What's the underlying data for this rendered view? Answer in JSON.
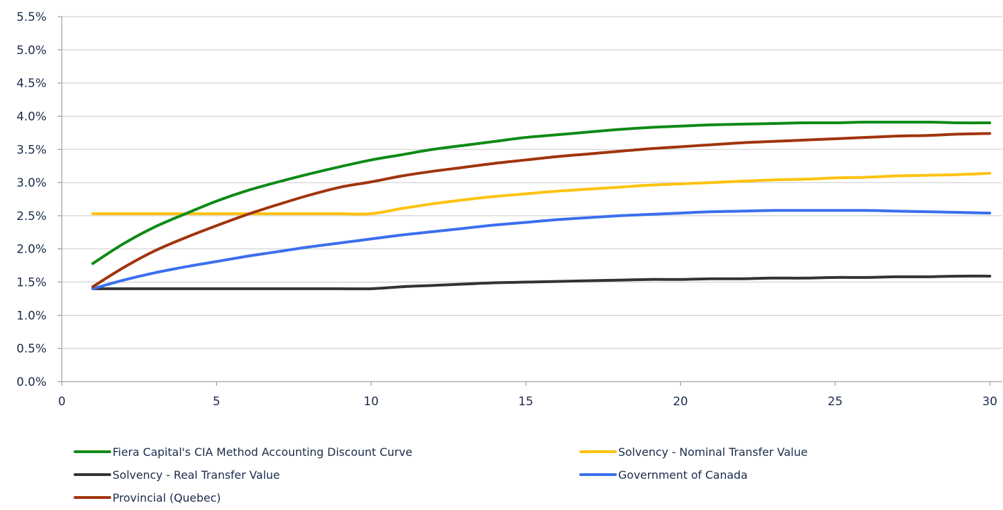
{
  "chart_data": {
    "type": "line",
    "title": "",
    "xlabel": "",
    "ylabel": "",
    "xlim": [
      0,
      30
    ],
    "ylim": [
      0.0,
      5.5
    ],
    "x_ticks": [
      0,
      5,
      10,
      15,
      20,
      25,
      30
    ],
    "x_tick_labels": [
      "0",
      "5",
      "10",
      "15",
      "20",
      "25",
      "30"
    ],
    "y_ticks": [
      0.0,
      0.5,
      1.0,
      1.5,
      2.0,
      2.5,
      3.0,
      3.5,
      4.0,
      4.5,
      5.0,
      5.5
    ],
    "y_tick_labels": [
      "0.0%",
      "0.5%",
      "1.0%",
      "1.5%",
      "2.0%",
      "2.5%",
      "3.0%",
      "3.5%",
      "4.0%",
      "4.5%",
      "5.0%",
      "5.5%"
    ],
    "grid": "horizontal",
    "legend_position": "bottom",
    "series": [
      {
        "name": "Fiera Capital's CIA Method Accounting Discount Curve",
        "color": "#0e8a16",
        "x": [
          1,
          2,
          3,
          4,
          5,
          6,
          7,
          8,
          9,
          10,
          11,
          12,
          13,
          14,
          15,
          16,
          17,
          18,
          19,
          20,
          21,
          22,
          23,
          24,
          25,
          26,
          27,
          28,
          29,
          30
        ],
        "values": [
          1.78,
          2.08,
          2.33,
          2.53,
          2.72,
          2.88,
          3.01,
          3.13,
          3.24,
          3.34,
          3.42,
          3.5,
          3.56,
          3.62,
          3.68,
          3.72,
          3.76,
          3.8,
          3.83,
          3.85,
          3.87,
          3.88,
          3.89,
          3.9,
          3.9,
          3.91,
          3.91,
          3.91,
          3.9,
          3.9
        ]
      },
      {
        "name": "Solvency - Nominal Transfer Value",
        "color": "#ffc20e",
        "x": [
          1,
          2,
          3,
          4,
          5,
          6,
          7,
          8,
          9,
          10,
          11,
          12,
          13,
          14,
          15,
          16,
          17,
          18,
          19,
          20,
          21,
          22,
          23,
          24,
          25,
          26,
          27,
          28,
          29,
          30
        ],
        "values": [
          2.53,
          2.53,
          2.53,
          2.53,
          2.53,
          2.53,
          2.53,
          2.53,
          2.53,
          2.53,
          2.61,
          2.68,
          2.74,
          2.79,
          2.83,
          2.87,
          2.9,
          2.93,
          2.96,
          2.98,
          3.0,
          3.02,
          3.04,
          3.05,
          3.07,
          3.08,
          3.1,
          3.11,
          3.12,
          3.14
        ]
      },
      {
        "name": "Solvency - Real Transfer Value",
        "color": "#333333",
        "x": [
          1,
          2,
          3,
          4,
          5,
          6,
          7,
          8,
          9,
          10,
          11,
          12,
          13,
          14,
          15,
          16,
          17,
          18,
          19,
          20,
          21,
          22,
          23,
          24,
          25,
          26,
          27,
          28,
          29,
          30
        ],
        "values": [
          1.4,
          1.4,
          1.4,
          1.4,
          1.4,
          1.4,
          1.4,
          1.4,
          1.4,
          1.4,
          1.43,
          1.45,
          1.47,
          1.49,
          1.5,
          1.51,
          1.52,
          1.53,
          1.54,
          1.54,
          1.55,
          1.55,
          1.56,
          1.56,
          1.57,
          1.57,
          1.58,
          1.58,
          1.59,
          1.59
        ]
      },
      {
        "name": "Government of Canada",
        "color": "#3b6ef0",
        "x": [
          1,
          2,
          3,
          4,
          5,
          6,
          7,
          8,
          9,
          10,
          11,
          12,
          13,
          14,
          15,
          16,
          17,
          18,
          19,
          20,
          21,
          22,
          23,
          24,
          25,
          26,
          27,
          28,
          29,
          30
        ],
        "values": [
          1.4,
          1.53,
          1.64,
          1.73,
          1.81,
          1.89,
          1.96,
          2.03,
          2.09,
          2.15,
          2.21,
          2.26,
          2.31,
          2.36,
          2.4,
          2.44,
          2.47,
          2.5,
          2.52,
          2.54,
          2.56,
          2.57,
          2.58,
          2.58,
          2.58,
          2.58,
          2.57,
          2.56,
          2.55,
          2.54
        ]
      },
      {
        "name": "Provincial (Quebec)",
        "color": "#a0340c",
        "x": [
          1,
          2,
          3,
          4,
          5,
          6,
          7,
          8,
          9,
          10,
          11,
          12,
          13,
          14,
          15,
          16,
          17,
          18,
          19,
          20,
          21,
          22,
          23,
          24,
          25,
          26,
          27,
          28,
          29,
          30
        ],
        "values": [
          1.43,
          1.72,
          1.97,
          2.17,
          2.35,
          2.52,
          2.67,
          2.81,
          2.93,
          3.01,
          3.1,
          3.17,
          3.23,
          3.29,
          3.34,
          3.39,
          3.43,
          3.47,
          3.51,
          3.54,
          3.57,
          3.6,
          3.62,
          3.64,
          3.66,
          3.68,
          3.7,
          3.71,
          3.73,
          3.74
        ]
      }
    ]
  }
}
